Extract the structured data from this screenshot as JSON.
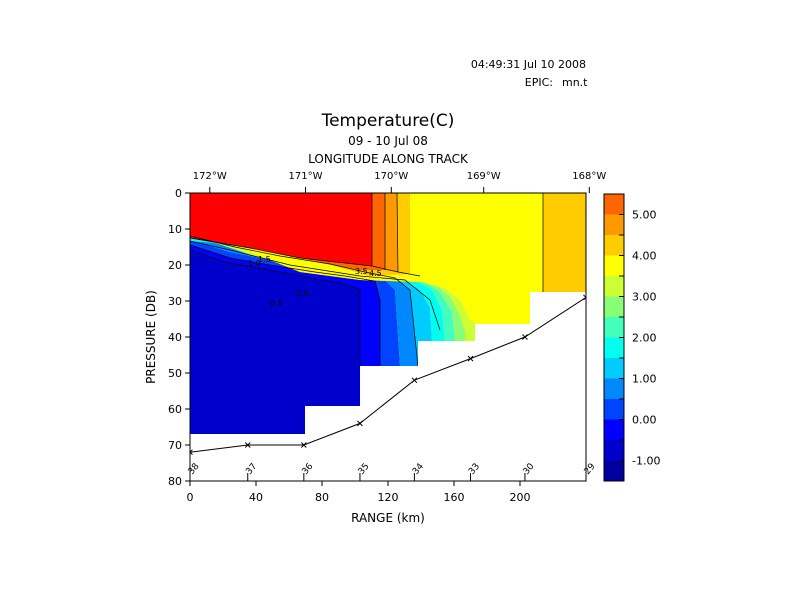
{
  "header": {
    "timestamp": "04:49:31 Jul 10 2008",
    "epic_label": "EPIC:",
    "epic_file": "mn.t"
  },
  "chart_data": {
    "type": "heatmap",
    "title": "Temperature(C)",
    "subtitle": "09 - 10 Jul 08",
    "top_axis_title": "LONGITUDE ALONG TRACK",
    "top_tick_labels": [
      "172°W",
      "171°W",
      "170°W",
      "169°W",
      "168°W"
    ],
    "top_tick_range_km": [
      12,
      70,
      122,
      178,
      242
    ],
    "xlabel": "RANGE (km)",
    "ylabel": "PRESSURE (DB)",
    "xlim": [
      0,
      240
    ],
    "ylim": [
      80,
      0
    ],
    "x_ticks": [
      "0",
      "40",
      "80",
      "120",
      "160",
      "200"
    ],
    "y_ticks": [
      "0",
      "10",
      "20",
      "30",
      "40",
      "50",
      "60",
      "70",
      "80"
    ],
    "colorbar": {
      "tick_labels": [
        "5.00",
        "4.00",
        "3.00",
        "2.00",
        "1.00",
        "0.00",
        "-1.00"
      ],
      "levels": [
        -1.5,
        -1.0,
        -0.5,
        0.0,
        0.5,
        1.0,
        1.5,
        2.0,
        2.5,
        3.0,
        3.5,
        4.0,
        4.5,
        5.0,
        5.5
      ],
      "colors": [
        "#0000a0",
        "#0000cc",
        "#0000ff",
        "#0044ff",
        "#0088ff",
        "#00ccff",
        "#00ffee",
        "#44ffbb",
        "#88ff77",
        "#ccff33",
        "#ffff00",
        "#ffcc00",
        "#ff9900",
        "#ff6600",
        "#ff0000"
      ]
    },
    "stations": [
      {
        "label": "38",
        "range_km": 0,
        "bottom_db": 72,
        "data_bottom_db": 67
      },
      {
        "label": "37",
        "range_km": 35,
        "bottom_db": 70,
        "data_bottom_db": 67
      },
      {
        "label": "36",
        "range_km": 69,
        "bottom_db": 70,
        "data_bottom_db": 59
      },
      {
        "label": "35",
        "range_km": 103,
        "bottom_db": 64,
        "data_bottom_db": 48
      },
      {
        "label": "34",
        "range_km": 136,
        "bottom_db": 52,
        "data_bottom_db": 41
      },
      {
        "label": "33",
        "range_km": 170,
        "bottom_db": 46,
        "data_bottom_db": 36
      },
      {
        "label": "30",
        "range_km": 203,
        "bottom_db": 40,
        "data_bottom_db": 27
      },
      {
        "label": "29",
        "range_km": 240,
        "bottom_db": 29,
        "data_bottom_db": 27
      }
    ],
    "contour_labels": [
      "0.5",
      "0.5",
      "1.0",
      "1.5",
      "3.5",
      "4.5"
    ]
  }
}
